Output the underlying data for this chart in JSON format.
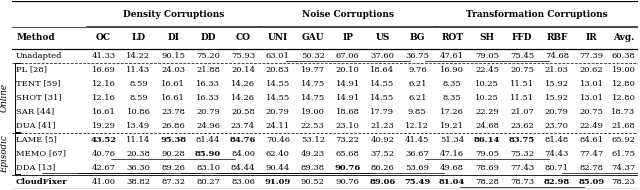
{
  "col_labels": [
    "Method",
    "OC",
    "LD",
    "DI",
    "DD",
    "CO",
    "UNI",
    "GAU",
    "IP",
    "US",
    "BG",
    "ROT",
    "SH",
    "FFD",
    "RBF",
    "IR",
    "Avg."
  ],
  "rows": [
    {
      "method": "Unadapted",
      "group": "none",
      "vals": [
        "41.33",
        "14.22",
        "90.15",
        "75.20",
        "75.93",
        "63.01",
        "50.32",
        "67.06",
        "37.60",
        "36.75",
        "47.61",
        "79.05",
        "75.45",
        "74.68",
        "77.39",
        "60.38"
      ],
      "bold": [
        false,
        false,
        false,
        false,
        false,
        false,
        false,
        false,
        false,
        false,
        false,
        false,
        false,
        false,
        false,
        false
      ],
      "underline": [
        false,
        false,
        false,
        false,
        false,
        false,
        false,
        true,
        false,
        false,
        false,
        true,
        false,
        false,
        false,
        false
      ]
    },
    {
      "method": "PL [28]",
      "group": "Online",
      "vals": [
        "16.69",
        "11.43",
        "24.03",
        "21.88",
        "20.14",
        "20.83",
        "19.77",
        "20.10",
        "18.64",
        "9.76",
        "16.90",
        "22.45",
        "20.75",
        "21.03",
        "20.62",
        "19.00"
      ],
      "bold": [
        false,
        false,
        false,
        false,
        false,
        false,
        false,
        false,
        false,
        false,
        false,
        false,
        false,
        false,
        false,
        false
      ],
      "underline": [
        false,
        false,
        false,
        false,
        false,
        false,
        false,
        false,
        false,
        false,
        false,
        false,
        false,
        false,
        false,
        false
      ]
    },
    {
      "method": "TENT [59]",
      "group": "Online",
      "vals": [
        "12.16",
        "8.59",
        "16.61",
        "16.33",
        "14.26",
        "14.55",
        "14.75",
        "14.91",
        "14.55",
        "6.21",
        "8.35",
        "10.25",
        "11.51",
        "15.92",
        "13.01",
        "12.80"
      ],
      "bold": [
        false,
        false,
        false,
        false,
        false,
        false,
        false,
        false,
        false,
        false,
        false,
        false,
        false,
        false,
        false,
        false
      ],
      "underline": [
        false,
        false,
        false,
        false,
        false,
        false,
        false,
        false,
        false,
        false,
        false,
        false,
        false,
        false,
        false,
        false
      ]
    },
    {
      "method": "SHOT [31]",
      "group": "Online",
      "vals": [
        "12.16",
        "8.59",
        "16.61",
        "16.33",
        "14.26",
        "14.55",
        "14.75",
        "14.91",
        "14.55",
        "6.21",
        "8.35",
        "10.25",
        "11.51",
        "15.92",
        "13.01",
        "12.80"
      ],
      "bold": [
        false,
        false,
        false,
        false,
        false,
        false,
        false,
        false,
        false,
        false,
        false,
        false,
        false,
        false,
        false,
        false
      ],
      "underline": [
        false,
        false,
        false,
        false,
        false,
        false,
        false,
        false,
        false,
        false,
        false,
        false,
        false,
        false,
        false,
        false
      ]
    },
    {
      "method": "SAR [44]",
      "group": "Online",
      "vals": [
        "16.61",
        "10.86",
        "23.78",
        "20.79",
        "20.58",
        "20.79",
        "19.00",
        "18.68",
        "17.79",
        "9.85",
        "17.26",
        "22.29",
        "21.07",
        "20.79",
        "20.75",
        "18.73"
      ],
      "bold": [
        false,
        false,
        false,
        false,
        false,
        false,
        false,
        false,
        false,
        false,
        false,
        false,
        false,
        false,
        false,
        false
      ],
      "underline": [
        false,
        false,
        false,
        false,
        false,
        false,
        false,
        false,
        false,
        false,
        false,
        false,
        false,
        false,
        false,
        false
      ]
    },
    {
      "method": "DUA [41]",
      "group": "Online",
      "vals": [
        "19.29",
        "13.49",
        "26.86",
        "24.96",
        "23.74",
        "24.11",
        "22.53",
        "23.10",
        "21.23",
        "12.12",
        "19.21",
        "24.68",
        "23.62",
        "23.70",
        "22.49",
        "21.68"
      ],
      "bold": [
        false,
        false,
        false,
        false,
        false,
        false,
        false,
        false,
        false,
        false,
        false,
        false,
        false,
        false,
        false,
        false
      ],
      "underline": [
        false,
        false,
        false,
        false,
        false,
        false,
        false,
        false,
        false,
        false,
        false,
        false,
        false,
        false,
        false,
        false
      ]
    },
    {
      "method": "LAME [5]",
      "group": "Episodic",
      "vals": [
        "43.52",
        "11.14",
        "95.38",
        "81.44",
        "84.76",
        "70.46",
        "53.12",
        "73.22",
        "40.92",
        "41.45",
        "51.34",
        "86.14",
        "83.75",
        "81.48",
        "84.61",
        "65.92"
      ],
      "bold": [
        true,
        false,
        true,
        false,
        true,
        false,
        false,
        false,
        false,
        false,
        false,
        true,
        true,
        false,
        false,
        false
      ],
      "underline": [
        false,
        false,
        false,
        false,
        false,
        false,
        false,
        false,
        false,
        false,
        false,
        false,
        false,
        false,
        false,
        false
      ]
    },
    {
      "method": "MEMO [67]",
      "group": "Episodic",
      "vals": [
        "40.76",
        "20.38",
        "90.28",
        "85.90",
        "84.00",
        "62.40",
        "49.23",
        "65.68",
        "37.52",
        "36.67",
        "47.16",
        "79.05",
        "75.32",
        "74.43",
        "77.47",
        "61.75"
      ],
      "bold": [
        false,
        false,
        false,
        true,
        false,
        false,
        false,
        false,
        false,
        false,
        false,
        false,
        false,
        false,
        false,
        false
      ],
      "underline": [
        false,
        false,
        true,
        false,
        false,
        false,
        false,
        false,
        false,
        false,
        false,
        true,
        false,
        false,
        false,
        false
      ]
    },
    {
      "method": "DDA [13]",
      "group": "Episodic",
      "vals": [
        "42.67",
        "36.30",
        "89.26",
        "83.10",
        "84.44",
        "90.44",
        "89.38",
        "90.76",
        "86.26",
        "53.69",
        "49.68",
        "78.69",
        "77.43",
        "80.71",
        "82.78",
        "74.37"
      ],
      "bold": [
        false,
        false,
        false,
        false,
        false,
        false,
        false,
        true,
        false,
        false,
        false,
        false,
        false,
        false,
        false,
        false
      ],
      "underline": [
        true,
        true,
        false,
        false,
        true,
        true,
        true,
        false,
        true,
        false,
        false,
        false,
        false,
        false,
        false,
        true
      ]
    },
    {
      "method": "CloudFixer",
      "group": "none",
      "vals": [
        "41.00",
        "38.82",
        "87.32",
        "80.27",
        "83.06",
        "91.09",
        "90.52",
        "90.76",
        "89.06",
        "75.49",
        "81.04",
        "78.28",
        "78.73",
        "82.98",
        "85.09",
        "78.23"
      ],
      "bold": [
        false,
        false,
        false,
        false,
        false,
        true,
        false,
        false,
        true,
        true,
        true,
        false,
        false,
        true,
        true,
        false
      ],
      "underline": [
        false,
        false,
        false,
        false,
        false,
        false,
        false,
        false,
        false,
        false,
        false,
        false,
        true,
        false,
        false,
        false
      ]
    }
  ],
  "bg_color": "#ffffff",
  "font_size": 6.0,
  "header_font_size": 6.5
}
